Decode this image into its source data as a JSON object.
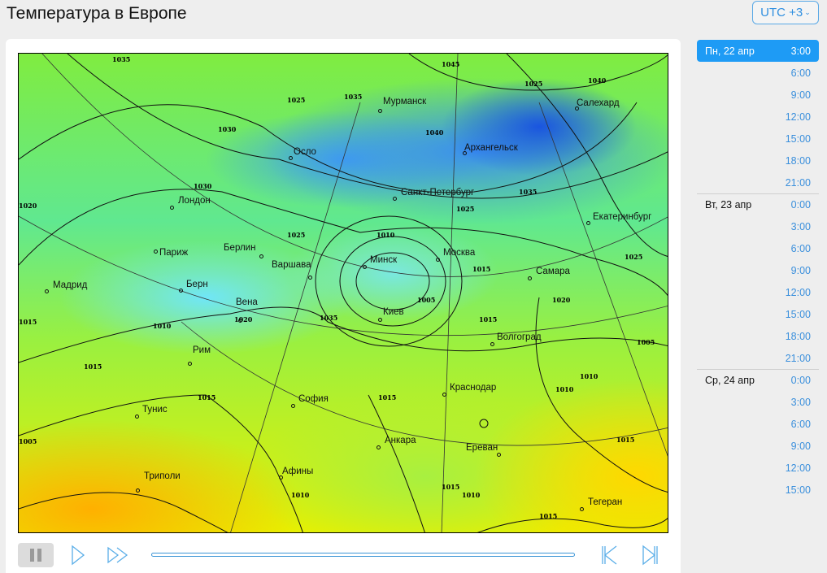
{
  "header": {
    "title": "Температура в Европе",
    "timezone": "UTC +3",
    "timezone_chevron": "⌄"
  },
  "map": {
    "cities": [
      "Мурманск",
      "Салехард",
      "Архангельск",
      "Осло",
      "Санкт-Петербург",
      "Лондон",
      "Екатеринбург",
      "Берлин",
      "Париж",
      "Варшава",
      "Минск",
      "Москва",
      "Самара",
      "Мадрид",
      "Берн",
      "Вена",
      "Киев",
      "Волгоград",
      "Рим",
      "София",
      "Краснодар",
      "Тунис",
      "Анкара",
      "Ереван",
      "Афины",
      "Триполи",
      "Тегеран"
    ],
    "isobar_labels": [
      "1035",
      "1025",
      "1035",
      "1045",
      "1040",
      "1025",
      "1040",
      "1030",
      "1030",
      "1035",
      "1025",
      "1020",
      "1025",
      "1010",
      "1025",
      "1020",
      "1015",
      "1015",
      "1005",
      "1020",
      "1010",
      "1035",
      "1005",
      "1015",
      "1015",
      "1015",
      "1010",
      "1015",
      "1005",
      "1010",
      "1015",
      "1015",
      "1010",
      "1015",
      "1010"
    ]
  },
  "controls": {
    "pause": "pause",
    "play": "play",
    "fast_forward": "fast-forward",
    "first": "skip-to-start",
    "last": "skip-to-end",
    "progress": 0
  },
  "colors": {
    "accent": "#1e9bf5",
    "link": "#3a8fdc"
  },
  "timeline": [
    {
      "day": "Пн, 22 апр",
      "times": [
        "3:00",
        "6:00",
        "9:00",
        "12:00",
        "15:00",
        "18:00",
        "21:00"
      ]
    },
    {
      "day": "Вт, 23 апр",
      "times": [
        "0:00",
        "3:00",
        "6:00",
        "9:00",
        "12:00",
        "15:00",
        "18:00",
        "21:00"
      ]
    },
    {
      "day": "Ср, 24 апр",
      "times": [
        "0:00",
        "3:00",
        "6:00",
        "9:00",
        "12:00",
        "15:00"
      ]
    }
  ],
  "selected": {
    "day": "Пн, 22 апр",
    "time": "3:00"
  }
}
